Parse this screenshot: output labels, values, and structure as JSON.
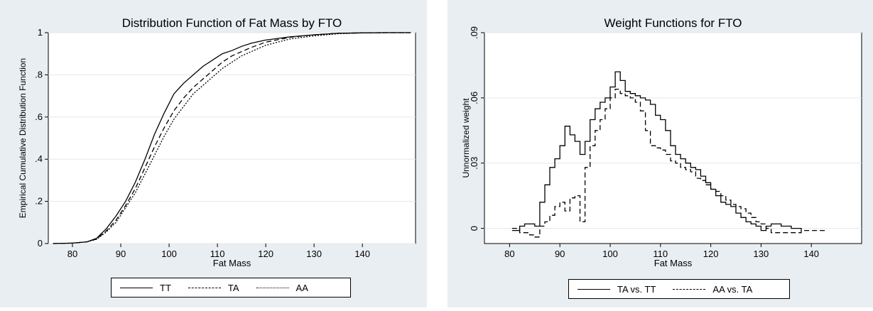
{
  "chart_data": [
    {
      "type": "line",
      "title": "Distribution Function of Fat Mass by FTO",
      "xlabel": "Fat Mass",
      "ylabel": "Empirical Cumulative Distribution Function",
      "xlim": [
        75,
        151
      ],
      "ylim": [
        0,
        1
      ],
      "xticks": [
        "80",
        "90",
        "100",
        "110",
        "120",
        "130",
        "140"
      ],
      "yticks": [
        "0",
        ".2",
        ".4",
        ".6",
        ".8",
        "1"
      ],
      "grid": true,
      "legend": "bottom",
      "series": [
        {
          "name": "TT",
          "style": "solid",
          "x": [
            76,
            80,
            83,
            85,
            87,
            89,
            91,
            93,
            95,
            97,
            99,
            101,
            103,
            105,
            107,
            109,
            111,
            113,
            115,
            117,
            120,
            125,
            130,
            135,
            140,
            145,
            150
          ],
          "y": [
            0,
            0.002,
            0.008,
            0.025,
            0.07,
            0.13,
            0.2,
            0.29,
            0.4,
            0.52,
            0.62,
            0.71,
            0.76,
            0.8,
            0.84,
            0.87,
            0.9,
            0.915,
            0.935,
            0.95,
            0.965,
            0.98,
            0.99,
            0.997,
            0.999,
            1,
            1
          ]
        },
        {
          "name": "TA",
          "style": "dashed",
          "x": [
            76,
            80,
            83,
            85,
            87,
            89,
            91,
            93,
            95,
            97,
            99,
            101,
            103,
            105,
            107,
            109,
            111,
            113,
            115,
            117,
            120,
            125,
            130,
            135,
            140,
            145,
            150
          ],
          "y": [
            0,
            0.002,
            0.008,
            0.022,
            0.06,
            0.11,
            0.18,
            0.26,
            0.36,
            0.46,
            0.55,
            0.63,
            0.69,
            0.74,
            0.78,
            0.82,
            0.86,
            0.89,
            0.91,
            0.93,
            0.955,
            0.978,
            0.99,
            0.997,
            0.999,
            1,
            1
          ]
        },
        {
          "name": "AA",
          "style": "dotted",
          "x": [
            76,
            80,
            83,
            85,
            87,
            89,
            91,
            93,
            95,
            97,
            99,
            101,
            103,
            105,
            107,
            109,
            111,
            113,
            115,
            117,
            120,
            125,
            130,
            135,
            140,
            145,
            150
          ],
          "y": [
            0,
            0.002,
            0.008,
            0.02,
            0.055,
            0.1,
            0.17,
            0.24,
            0.33,
            0.42,
            0.51,
            0.59,
            0.65,
            0.71,
            0.75,
            0.79,
            0.83,
            0.86,
            0.89,
            0.91,
            0.94,
            0.97,
            0.985,
            0.995,
            0.999,
            1,
            1
          ]
        }
      ]
    },
    {
      "type": "line",
      "title": "Weight Functions for FTO",
      "xlabel": "Fat Mass",
      "ylabel": "Unnormalized weight",
      "xlim": [
        75,
        150
      ],
      "ylim": [
        -0.007,
        0.09
      ],
      "xticks": [
        "80",
        "90",
        "100",
        "110",
        "120",
        "130",
        "140"
      ],
      "yticks": [
        "0",
        ".03",
        ".06",
        ".09"
      ],
      "grid": true,
      "legend": "bottom",
      "series": [
        {
          "name": "TA vs. TT",
          "style": "solid",
          "x": [
            80.5,
            82,
            83,
            84,
            85,
            86,
            87,
            88,
            89,
            90,
            91,
            92,
            93,
            94,
            95,
            96,
            97,
            98,
            99,
            100,
            101,
            102,
            103,
            104,
            105,
            106,
            107,
            108,
            109,
            110,
            111,
            112,
            113,
            114,
            115,
            116,
            117,
            118,
            119,
            120,
            121,
            122,
            123,
            124,
            125,
            126,
            127,
            128,
            129,
            130,
            131,
            132,
            134,
            136,
            138
          ],
          "y": [
            -0.001,
            0.001,
            0.002,
            0.002,
            0.001,
            0.012,
            0.02,
            0.028,
            0.032,
            0.038,
            0.047,
            0.043,
            0.04,
            0.034,
            0.04,
            0.05,
            0.055,
            0.058,
            0.06,
            0.065,
            0.072,
            0.068,
            0.063,
            0.062,
            0.061,
            0.06,
            0.059,
            0.057,
            0.052,
            0.05,
            0.045,
            0.038,
            0.034,
            0.032,
            0.03,
            0.028,
            0.027,
            0.024,
            0.021,
            0.018,
            0.015,
            0.012,
            0.011,
            0.01,
            0.007,
            0.005,
            0.003,
            0.002,
            0.001,
            -0.001,
            0.001,
            0.002,
            0.001,
            0.0,
            -0.001
          ]
        },
        {
          "name": "AA vs. TA",
          "style": "dashed",
          "x": [
            80.5,
            82,
            83,
            84,
            85,
            86,
            87,
            88,
            89,
            90,
            91,
            92,
            93,
            94,
            95,
            96,
            97,
            98,
            99,
            100,
            101,
            102,
            103,
            104,
            105,
            106,
            107,
            108,
            109,
            110,
            111,
            112,
            113,
            114,
            115,
            116,
            117,
            118,
            119,
            120,
            121,
            122,
            123,
            124,
            125,
            126,
            127,
            128,
            129,
            130,
            131,
            132,
            134,
            136,
            138,
            143
          ],
          "y": [
            0.0,
            -0.002,
            -0.002,
            -0.003,
            -0.004,
            0.001,
            0.003,
            0.006,
            0.01,
            0.012,
            0.008,
            0.014,
            0.015,
            0.003,
            0.028,
            0.038,
            0.045,
            0.05,
            0.055,
            0.06,
            0.064,
            0.062,
            0.061,
            0.06,
            0.058,
            0.054,
            0.045,
            0.038,
            0.037,
            0.036,
            0.034,
            0.031,
            0.03,
            0.028,
            0.027,
            0.026,
            0.023,
            0.022,
            0.02,
            0.018,
            0.017,
            0.015,
            0.013,
            0.011,
            0.01,
            0.009,
            0.007,
            0.005,
            0.003,
            0.002,
            0.0,
            -0.002,
            -0.002,
            -0.002,
            -0.001,
            -0.001
          ]
        }
      ]
    }
  ]
}
